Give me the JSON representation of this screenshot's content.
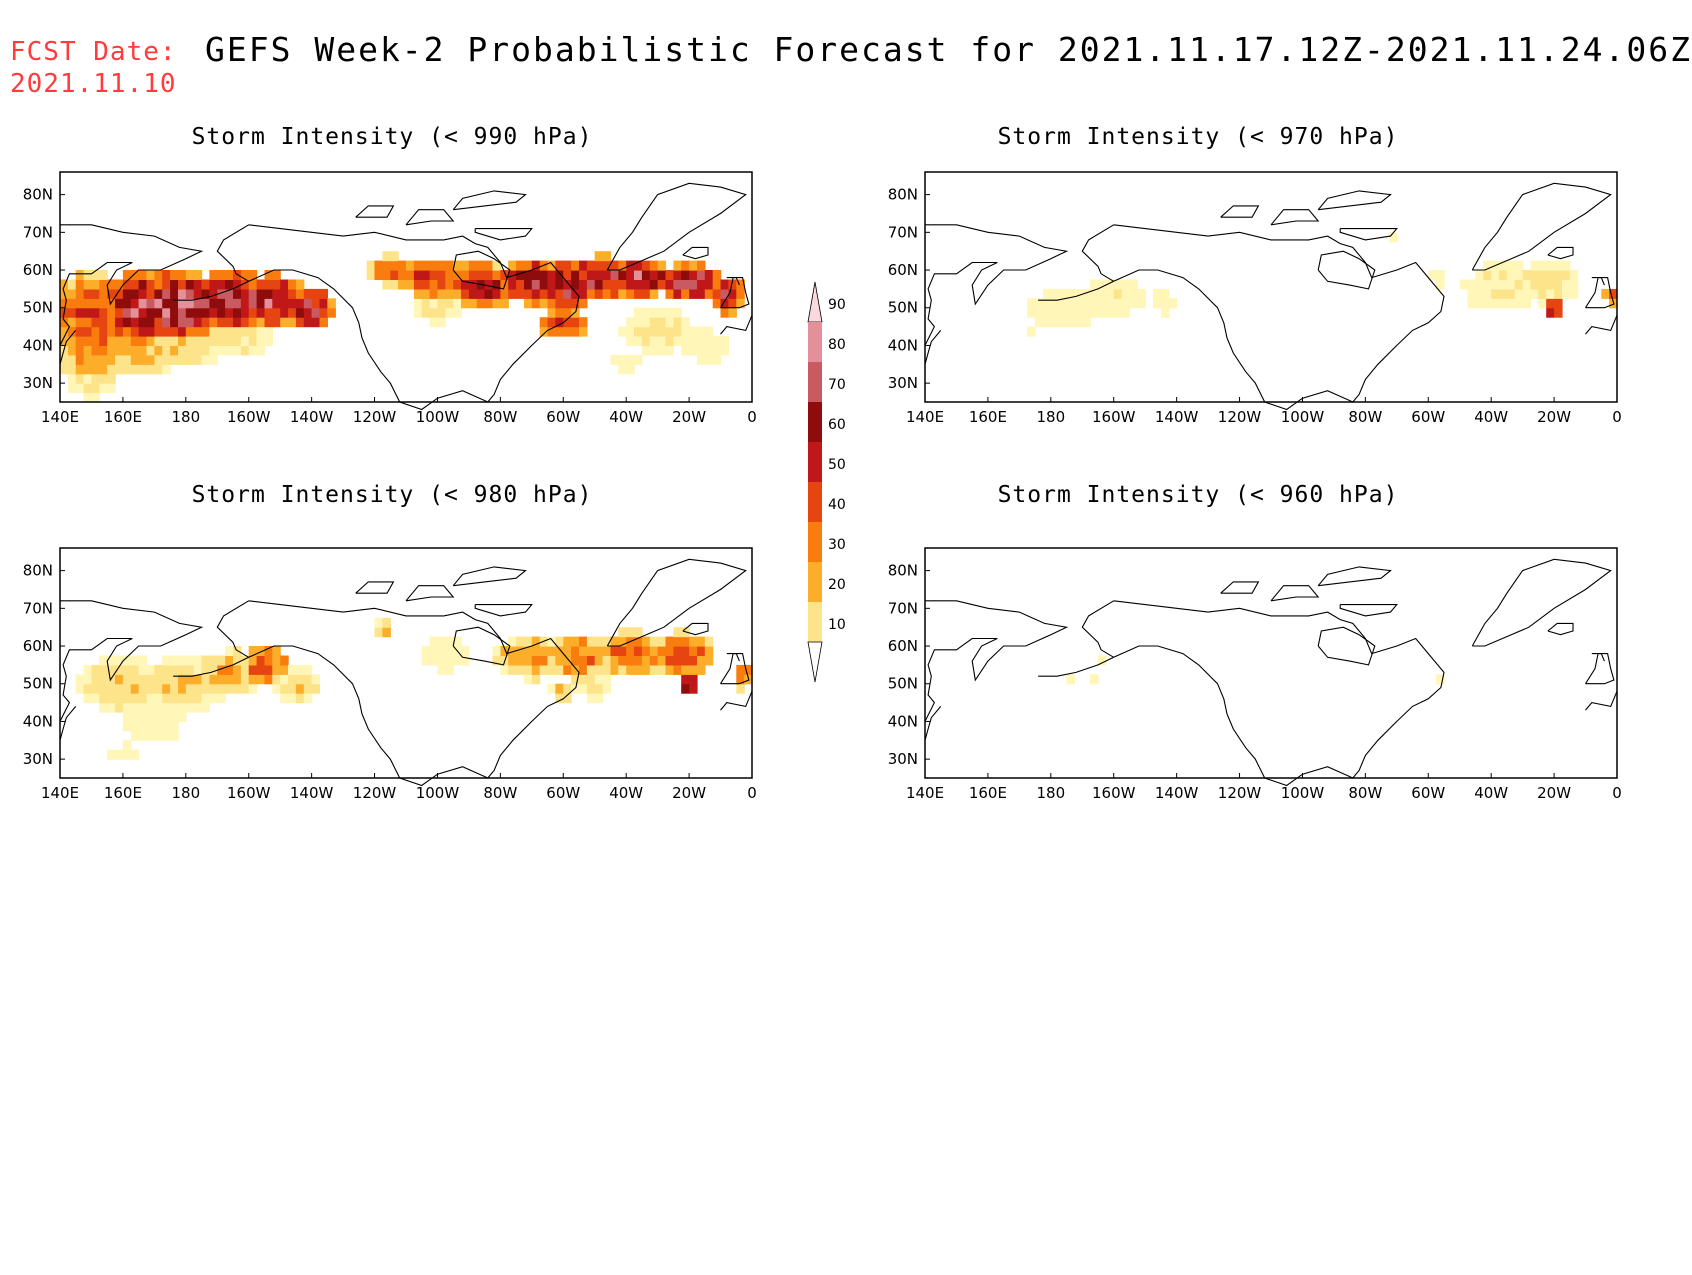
{
  "header": {
    "fcst_label": "FCST Date:",
    "fcst_date": "2021.11.10",
    "title": "GEFS Week-2 Probabilistic Forecast for 2021.11.17.12Z-2021.11.24.06Z"
  },
  "axes": {
    "lon_labels": [
      "140E",
      "160E",
      "180",
      "160W",
      "140W",
      "120W",
      "100W",
      "80W",
      "60W",
      "40W",
      "20W",
      "0"
    ],
    "lat_labels": [
      "80N",
      "70N",
      "60N",
      "50N",
      "40N",
      "30N"
    ]
  },
  "colorbar": {
    "levels": [
      "10",
      "20",
      "30",
      "40",
      "50",
      "60",
      "70",
      "80",
      "90"
    ],
    "colors": [
      "#fff6b8",
      "#fde48a",
      "#fcad2a",
      "#f97c0e",
      "#e64512",
      "#c01818",
      "#8e0c0c",
      "#c95a62",
      "#e4909a",
      "#fbd8dc"
    ]
  },
  "panels": [
    {
      "id": "p990",
      "title": "Storm Intensity (< 990 hPa)",
      "intensity": 1.0
    },
    {
      "id": "p970",
      "title": "Storm Intensity (< 970 hPa)",
      "intensity": 0.3
    },
    {
      "id": "p980",
      "title": "Storm Intensity (< 980 hPa)",
      "intensity": 0.56
    },
    {
      "id": "p960",
      "title": "Storm Intensity (< 960 hPa)",
      "intensity": 0.13
    }
  ]
}
